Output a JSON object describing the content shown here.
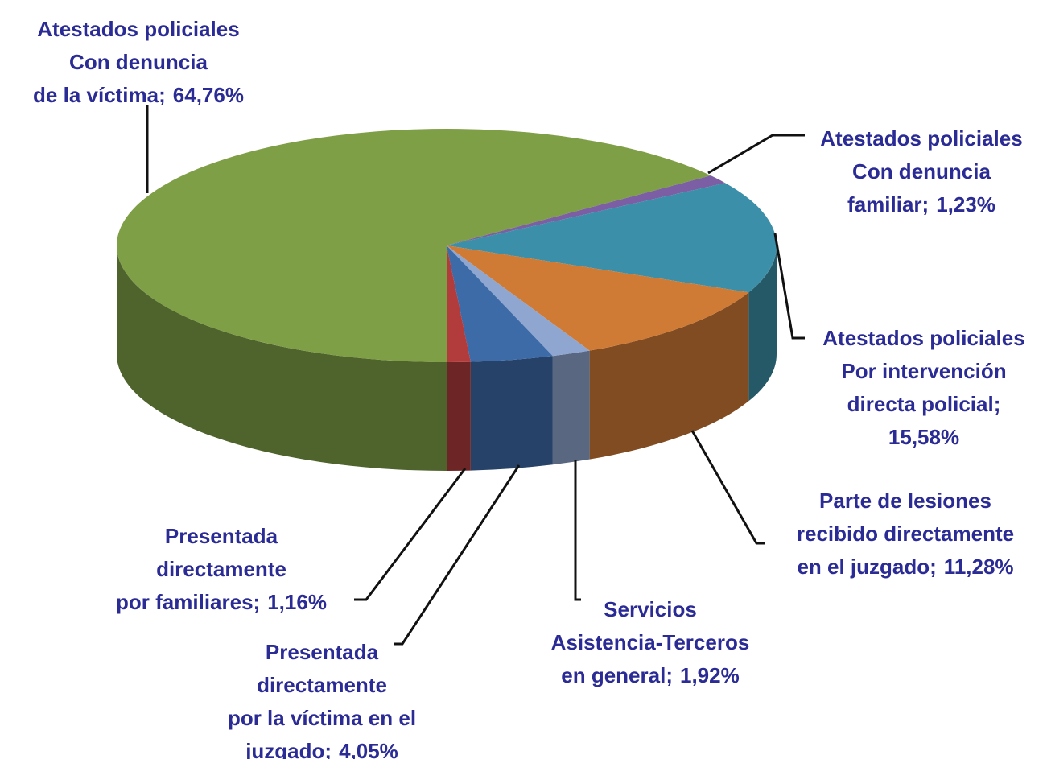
{
  "chart_data": {
    "type": "pie3d",
    "categories": [
      [
        "Atestados policiales",
        "Con denuncia",
        "de la víctima"
      ],
      [
        "Atestados policiales",
        "Con denuncia",
        "familiar"
      ],
      [
        "Atestados policiales",
        "Por intervención",
        "directa policial"
      ],
      [
        "Parte de lesiones",
        "recibido directamente",
        "en el juzgado"
      ],
      [
        "Servicios",
        "Asistencia-Terceros",
        "en general"
      ],
      [
        "Presentada",
        "directamente",
        "por la víctima en el",
        "juzgado"
      ],
      [
        "Presentada",
        "directamente",
        "por familiares"
      ]
    ],
    "values": [
      64.76,
      1.23,
      15.58,
      11.28,
      1.92,
      4.05,
      1.16
    ],
    "value_labels": [
      "64,76%",
      "1,23%",
      "15,58%",
      "11,28%",
      "1,92%",
      "4,05%",
      "1,16%"
    ],
    "label_separator": ";",
    "colors": [
      "#7f9f47",
      "#7b5ea3",
      "#3c8fa8",
      "#d07b35",
      "#8fa6d0",
      "#3d6ba8",
      "#b23b3b"
    ]
  }
}
